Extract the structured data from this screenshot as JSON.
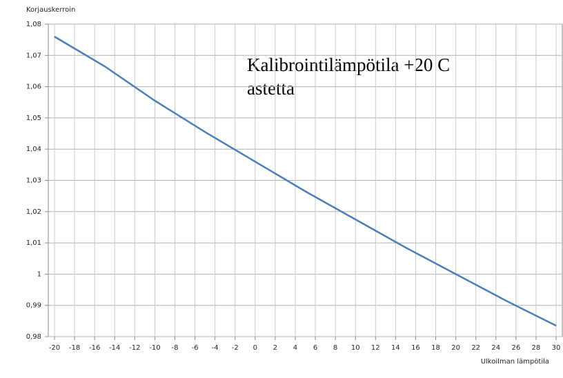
{
  "chart_data": {
    "type": "line",
    "y_label": "Korjauskerroin",
    "x_label": "Ulkoilman lämpötila",
    "annotation": [
      "Kalibrointilämpötila +20 C",
      "astetta"
    ],
    "x": [
      -20,
      -15,
      -10,
      -5,
      0,
      5,
      10,
      15,
      20,
      25,
      30
    ],
    "series": [
      {
        "color": "#4a7ebb",
        "values": [
          1.076,
          1.0665,
          1.0555,
          1.0455,
          1.036,
          1.0265,
          1.0175,
          1.0085,
          1.0,
          0.9915,
          0.9835
        ]
      }
    ],
    "xlim": [
      -20,
      30
    ],
    "xticks": [
      -20,
      -18,
      -16,
      -14,
      -12,
      -10,
      -8,
      -6,
      -4,
      -2,
      0,
      2,
      4,
      6,
      8,
      10,
      12,
      14,
      16,
      18,
      20,
      22,
      24,
      26,
      28,
      30
    ],
    "ylim": [
      0.98,
      1.08
    ],
    "yticks": [
      {
        "value": 0.98,
        "label": "0,98"
      },
      {
        "value": 0.99,
        "label": "0,99"
      },
      1,
      {
        "value": 1.01,
        "label": "1,01"
      },
      {
        "value": 1.02,
        "label": "1,02"
      },
      {
        "value": 1.03,
        "label": "1,03"
      },
      {
        "value": 1.04,
        "label": "1,04"
      },
      {
        "value": 1.05,
        "label": "1,05"
      },
      {
        "value": 1.06,
        "label": "1,06"
      },
      {
        "value": 1.07,
        "label": "1,07"
      },
      {
        "value": 1.08,
        "label": "1,08"
      }
    ],
    "grid": true
  }
}
